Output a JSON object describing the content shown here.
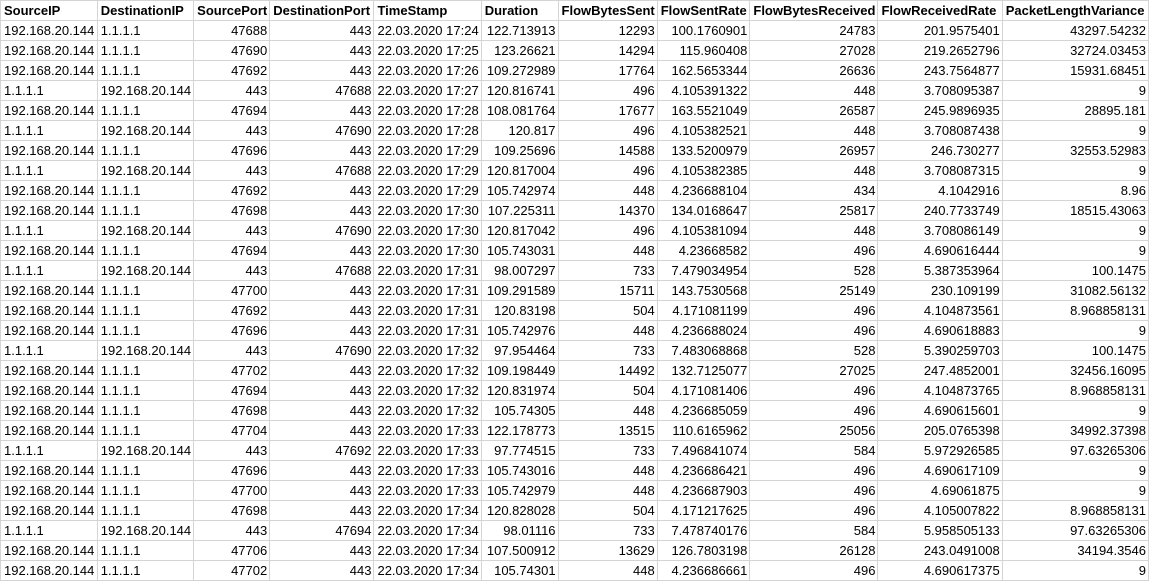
{
  "sheet": {
    "columns": [
      {
        "key": "SourceIP",
        "label": "SourceIP",
        "align": "left"
      },
      {
        "key": "DestinationIP",
        "label": "DestinationIP",
        "align": "left"
      },
      {
        "key": "SourcePort",
        "label": "SourcePort",
        "align": "right"
      },
      {
        "key": "DestinationPort",
        "label": "DestinationPort",
        "align": "right"
      },
      {
        "key": "TimeStamp",
        "label": "TimeStamp",
        "align": "left"
      },
      {
        "key": "Duration",
        "label": "Duration",
        "align": "right"
      },
      {
        "key": "FlowBytesSent",
        "label": "FlowBytesSent",
        "align": "right"
      },
      {
        "key": "FlowSentRate",
        "label": "FlowSentRate",
        "align": "right"
      },
      {
        "key": "FlowBytesReceived",
        "label": "FlowBytesReceived",
        "align": "right"
      },
      {
        "key": "FlowReceivedRate",
        "label": "FlowReceivedRate",
        "align": "right"
      },
      {
        "key": "PacketLengthVariance",
        "label": "PacketLengthVariance",
        "align": "right"
      }
    ],
    "rows": [
      [
        "192.168.20.144",
        "1.1.1.1",
        "47688",
        "443",
        "22.03.2020 17:24",
        "122.713913",
        "12293",
        "100.1760901",
        "24783",
        "201.9575401",
        "43297.54232"
      ],
      [
        "192.168.20.144",
        "1.1.1.1",
        "47690",
        "443",
        "22.03.2020 17:25",
        "123.26621",
        "14294",
        "115.960408",
        "27028",
        "219.2652796",
        "32724.03453"
      ],
      [
        "192.168.20.144",
        "1.1.1.1",
        "47692",
        "443",
        "22.03.2020 17:26",
        "109.272989",
        "17764",
        "162.5653344",
        "26636",
        "243.7564877",
        "15931.68451"
      ],
      [
        "1.1.1.1",
        "192.168.20.144",
        "443",
        "47688",
        "22.03.2020 17:27",
        "120.816741",
        "496",
        "4.105391322",
        "448",
        "3.708095387",
        "9"
      ],
      [
        "192.168.20.144",
        "1.1.1.1",
        "47694",
        "443",
        "22.03.2020 17:28",
        "108.081764",
        "17677",
        "163.5521049",
        "26587",
        "245.9896935",
        "28895.181"
      ],
      [
        "1.1.1.1",
        "192.168.20.144",
        "443",
        "47690",
        "22.03.2020 17:28",
        "120.817",
        "496",
        "4.105382521",
        "448",
        "3.708087438",
        "9"
      ],
      [
        "192.168.20.144",
        "1.1.1.1",
        "47696",
        "443",
        "22.03.2020 17:29",
        "109.25696",
        "14588",
        "133.5200979",
        "26957",
        "246.730277",
        "32553.52983"
      ],
      [
        "1.1.1.1",
        "192.168.20.144",
        "443",
        "47688",
        "22.03.2020 17:29",
        "120.817004",
        "496",
        "4.105382385",
        "448",
        "3.708087315",
        "9"
      ],
      [
        "192.168.20.144",
        "1.1.1.1",
        "47692",
        "443",
        "22.03.2020 17:29",
        "105.742974",
        "448",
        "4.236688104",
        "434",
        "4.1042916",
        "8.96"
      ],
      [
        "192.168.20.144",
        "1.1.1.1",
        "47698",
        "443",
        "22.03.2020 17:30",
        "107.225311",
        "14370",
        "134.0168647",
        "25817",
        "240.7733749",
        "18515.43063"
      ],
      [
        "1.1.1.1",
        "192.168.20.144",
        "443",
        "47690",
        "22.03.2020 17:30",
        "120.817042",
        "496",
        "4.105381094",
        "448",
        "3.708086149",
        "9"
      ],
      [
        "192.168.20.144",
        "1.1.1.1",
        "47694",
        "443",
        "22.03.2020 17:30",
        "105.743031",
        "448",
        "4.23668582",
        "496",
        "4.690616444",
        "9"
      ],
      [
        "1.1.1.1",
        "192.168.20.144",
        "443",
        "47688",
        "22.03.2020 17:31",
        "98.007297",
        "733",
        "7.479034954",
        "528",
        "5.387353964",
        "100.1475"
      ],
      [
        "192.168.20.144",
        "1.1.1.1",
        "47700",
        "443",
        "22.03.2020 17:31",
        "109.291589",
        "15711",
        "143.7530568",
        "25149",
        "230.109199",
        "31082.56132"
      ],
      [
        "192.168.20.144",
        "1.1.1.1",
        "47692",
        "443",
        "22.03.2020 17:31",
        "120.83198",
        "504",
        "4.171081199",
        "496",
        "4.104873561",
        "8.968858131"
      ],
      [
        "192.168.20.144",
        "1.1.1.1",
        "47696",
        "443",
        "22.03.2020 17:31",
        "105.742976",
        "448",
        "4.236688024",
        "496",
        "4.690618883",
        "9"
      ],
      [
        "1.1.1.1",
        "192.168.20.144",
        "443",
        "47690",
        "22.03.2020 17:32",
        "97.954464",
        "733",
        "7.483068868",
        "528",
        "5.390259703",
        "100.1475"
      ],
      [
        "192.168.20.144",
        "1.1.1.1",
        "47702",
        "443",
        "22.03.2020 17:32",
        "109.198449",
        "14492",
        "132.7125077",
        "27025",
        "247.4852001",
        "32456.16095"
      ],
      [
        "192.168.20.144",
        "1.1.1.1",
        "47694",
        "443",
        "22.03.2020 17:32",
        "120.831974",
        "504",
        "4.171081406",
        "496",
        "4.104873765",
        "8.968858131"
      ],
      [
        "192.168.20.144",
        "1.1.1.1",
        "47698",
        "443",
        "22.03.2020 17:32",
        "105.74305",
        "448",
        "4.236685059",
        "496",
        "4.690615601",
        "9"
      ],
      [
        "192.168.20.144",
        "1.1.1.1",
        "47704",
        "443",
        "22.03.2020 17:33",
        "122.178773",
        "13515",
        "110.6165962",
        "25056",
        "205.0765398",
        "34992.37398"
      ],
      [
        "1.1.1.1",
        "192.168.20.144",
        "443",
        "47692",
        "22.03.2020 17:33",
        "97.774515",
        "733",
        "7.496841074",
        "584",
        "5.972926585",
        "97.63265306"
      ],
      [
        "192.168.20.144",
        "1.1.1.1",
        "47696",
        "443",
        "22.03.2020 17:33",
        "105.743016",
        "448",
        "4.236686421",
        "496",
        "4.690617109",
        "9"
      ],
      [
        "192.168.20.144",
        "1.1.1.1",
        "47700",
        "443",
        "22.03.2020 17:33",
        "105.742979",
        "448",
        "4.236687903",
        "496",
        "4.69061875",
        "9"
      ],
      [
        "192.168.20.144",
        "1.1.1.1",
        "47698",
        "443",
        "22.03.2020 17:34",
        "120.828028",
        "504",
        "4.171217625",
        "496",
        "4.105007822",
        "8.968858131"
      ],
      [
        "1.1.1.1",
        "192.168.20.144",
        "443",
        "47694",
        "22.03.2020 17:34",
        "98.01116",
        "733",
        "7.478740176",
        "584",
        "5.958505133",
        "97.63265306"
      ],
      [
        "192.168.20.144",
        "1.1.1.1",
        "47706",
        "443",
        "22.03.2020 17:34",
        "107.500912",
        "13629",
        "126.7803198",
        "26128",
        "243.0491008",
        "34194.3546"
      ],
      [
        "192.168.20.144",
        "1.1.1.1",
        "47702",
        "443",
        "22.03.2020 17:34",
        "105.74301",
        "448",
        "4.236686661",
        "496",
        "4.690617375",
        "9"
      ]
    ]
  }
}
